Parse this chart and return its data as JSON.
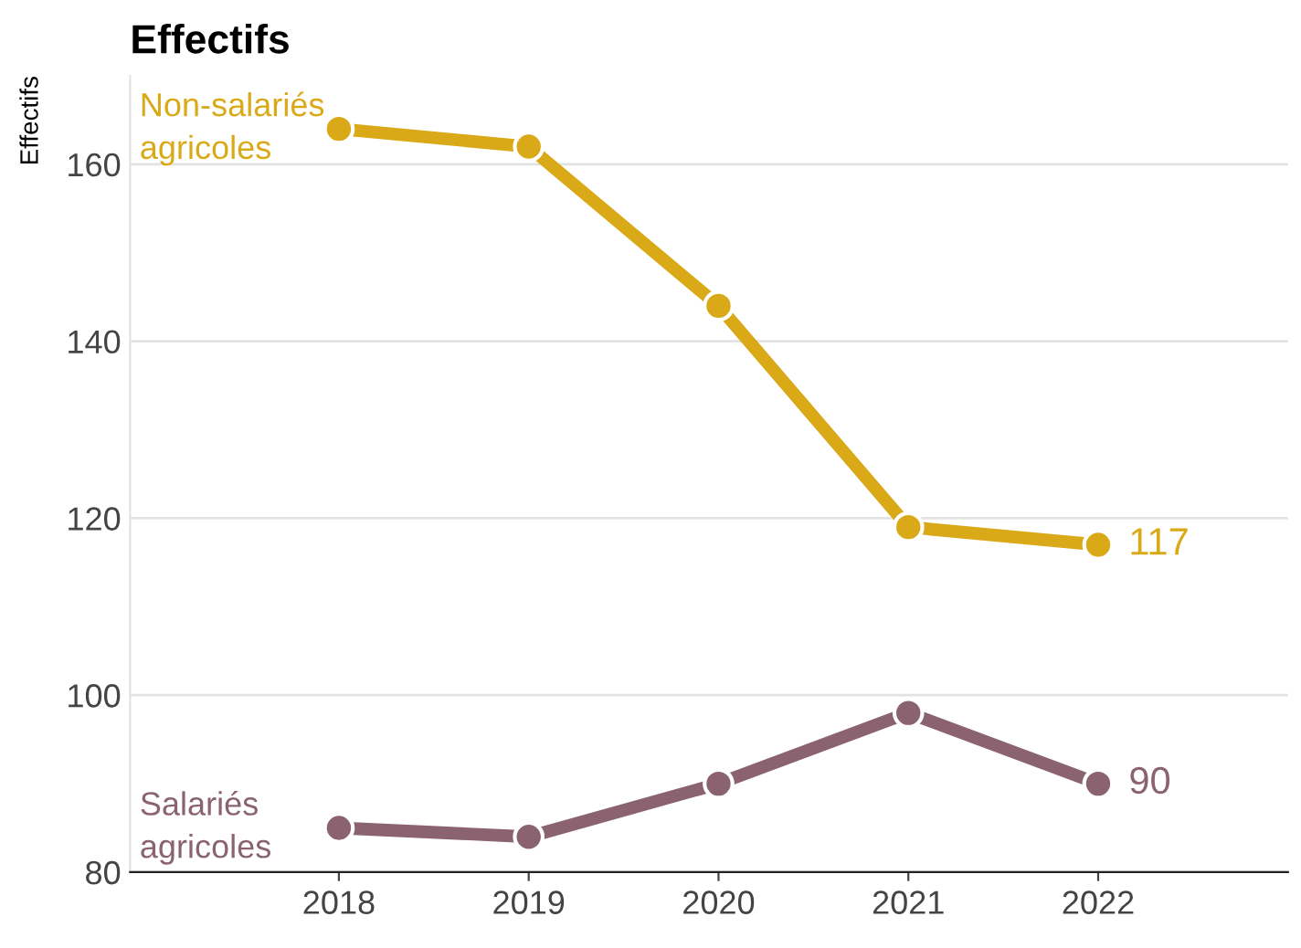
{
  "chart_data": {
    "type": "line",
    "title": "Effectifs",
    "ylabel": "Effectifs",
    "x": [
      2018,
      2019,
      2020,
      2021,
      2022
    ],
    "series": [
      {
        "name": "Non-salariés\nagricoles",
        "color": "#d9a917",
        "values": [
          164,
          162,
          144,
          119,
          117
        ],
        "value_labels": [
          null,
          null,
          null,
          null,
          "117"
        ]
      },
      {
        "name": "Salariés\nagricoles",
        "color": "#8a6270",
        "values": [
          85,
          84,
          90,
          98,
          90
        ],
        "value_labels": [
          null,
          null,
          null,
          null,
          "90"
        ]
      }
    ],
    "xlim": [
      2016.9,
      2023
    ],
    "xticks": [
      2018,
      2019,
      2020,
      2021,
      2022
    ],
    "ylim": [
      80,
      170
    ],
    "yticks": [
      80,
      100,
      120,
      140,
      160
    ],
    "grid": "y",
    "legend": false,
    "marker": "circle",
    "line_style": "solid"
  }
}
